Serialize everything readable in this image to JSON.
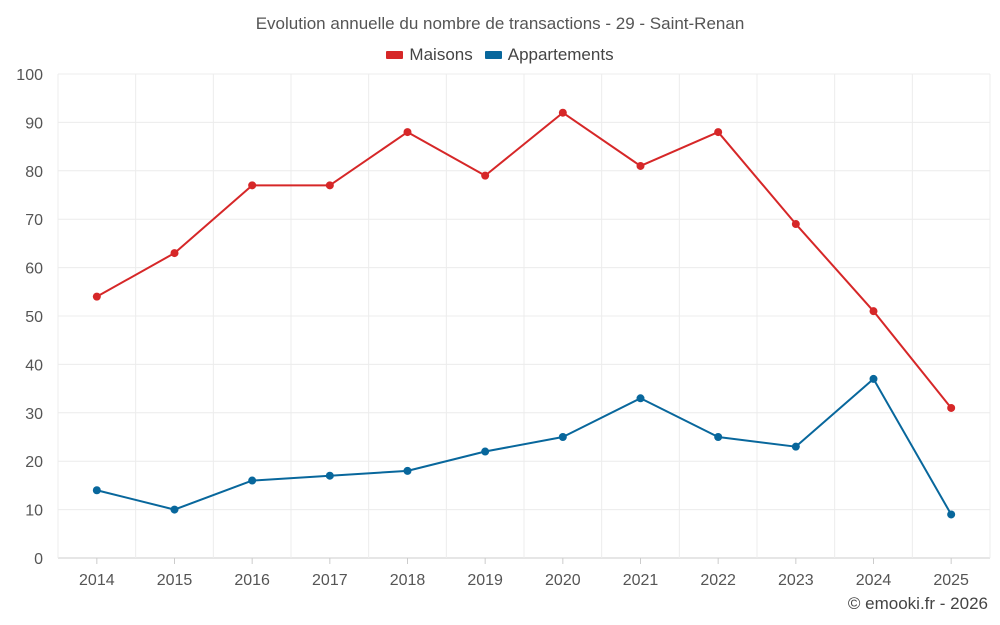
{
  "chart_data": {
    "type": "line",
    "title": "Evolution annuelle du nombre de transactions - 29 - Saint-Renan",
    "categories": [
      "2014",
      "2015",
      "2016",
      "2017",
      "2018",
      "2019",
      "2020",
      "2021",
      "2022",
      "2023",
      "2024",
      "2025"
    ],
    "series": [
      {
        "name": "Maisons",
        "color": "#d62728",
        "values": [
          54,
          63,
          77,
          77,
          88,
          79,
          92,
          81,
          88,
          69,
          51,
          31
        ]
      },
      {
        "name": "Appartements",
        "color": "#08679c",
        "values": [
          14,
          10,
          16,
          17,
          18,
          22,
          25,
          33,
          25,
          23,
          37,
          9
        ]
      }
    ],
    "ylim": [
      0,
      100
    ],
    "yticks": [
      0,
      10,
      20,
      30,
      40,
      50,
      60,
      70,
      80,
      90,
      100
    ],
    "xlabel": "",
    "ylabel": "",
    "grid": true,
    "legend": "top-center"
  },
  "footer": {
    "credit": "© emooki.fr - 2026"
  }
}
